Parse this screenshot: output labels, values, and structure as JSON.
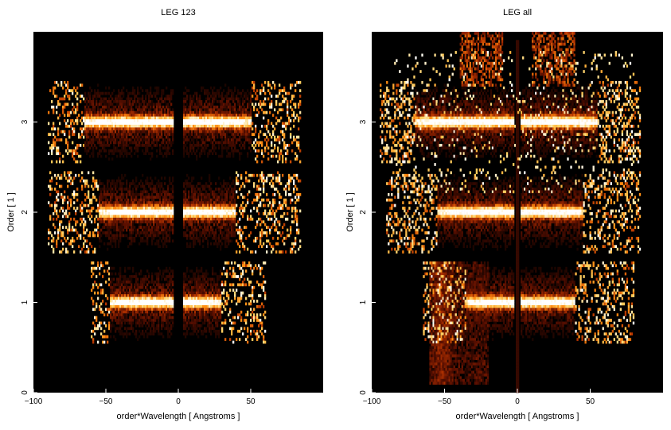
{
  "chart_data": [
    {
      "type": "heatmap",
      "title": "LEG 123",
      "xlabel": "order*Wavelength [ Angstroms ]",
      "ylabel": "Order [ 1 ]",
      "xlim": [
        -100,
        100
      ],
      "ylim": [
        0,
        4
      ],
      "x_ticks": [
        -100,
        -50,
        0,
        50
      ],
      "y_ticks": [
        0,
        1,
        2,
        3
      ],
      "colormap": [
        "#000000",
        "#5a0f00",
        "#b33300",
        "#ff8a10",
        "#ffd060",
        "#ffffff"
      ],
      "bands": [
        {
          "order": 1,
          "center_y": 1.0,
          "x_range": [
            -60,
            60
          ],
          "bright_range": [
            -47,
            30
          ],
          "gap": [
            -3,
            3
          ]
        },
        {
          "order": 2,
          "center_y": 2.0,
          "x_range": [
            -90,
            85
          ],
          "bright_range": [
            -55,
            40
          ],
          "gap": [
            -3,
            3
          ]
        },
        {
          "order": 3,
          "center_y": 3.0,
          "x_range": [
            -90,
            85
          ],
          "bright_range": [
            -65,
            50
          ],
          "gap": [
            -3,
            3
          ]
        }
      ]
    },
    {
      "type": "heatmap",
      "title": "LEG all",
      "xlabel": "order*Wavelength [ Angstroms ]",
      "ylabel": "Order [ 1 ]",
      "xlim": [
        -100,
        100
      ],
      "ylim": [
        0,
        4
      ],
      "x_ticks": [
        -100,
        -50,
        0,
        50
      ],
      "y_ticks": [
        0,
        1,
        2,
        3
      ],
      "colormap": [
        "#000000",
        "#5a0f00",
        "#b33300",
        "#ff8a10",
        "#ffd060",
        "#ffffff"
      ],
      "bands": [
        {
          "order": 1,
          "center_y": 1.0,
          "x_range": [
            -65,
            80
          ],
          "bright_range": [
            -35,
            40
          ],
          "gap": [
            -2,
            2
          ]
        },
        {
          "order": 2,
          "center_y": 2.0,
          "x_range": [
            -90,
            85
          ],
          "bright_range": [
            -55,
            45
          ],
          "gap": [
            -2,
            2
          ]
        },
        {
          "order": 3,
          "center_y": 3.0,
          "x_range": [
            -95,
            85
          ],
          "bright_range": [
            -70,
            55
          ],
          "gap": [
            -2,
            2
          ]
        }
      ]
    }
  ]
}
